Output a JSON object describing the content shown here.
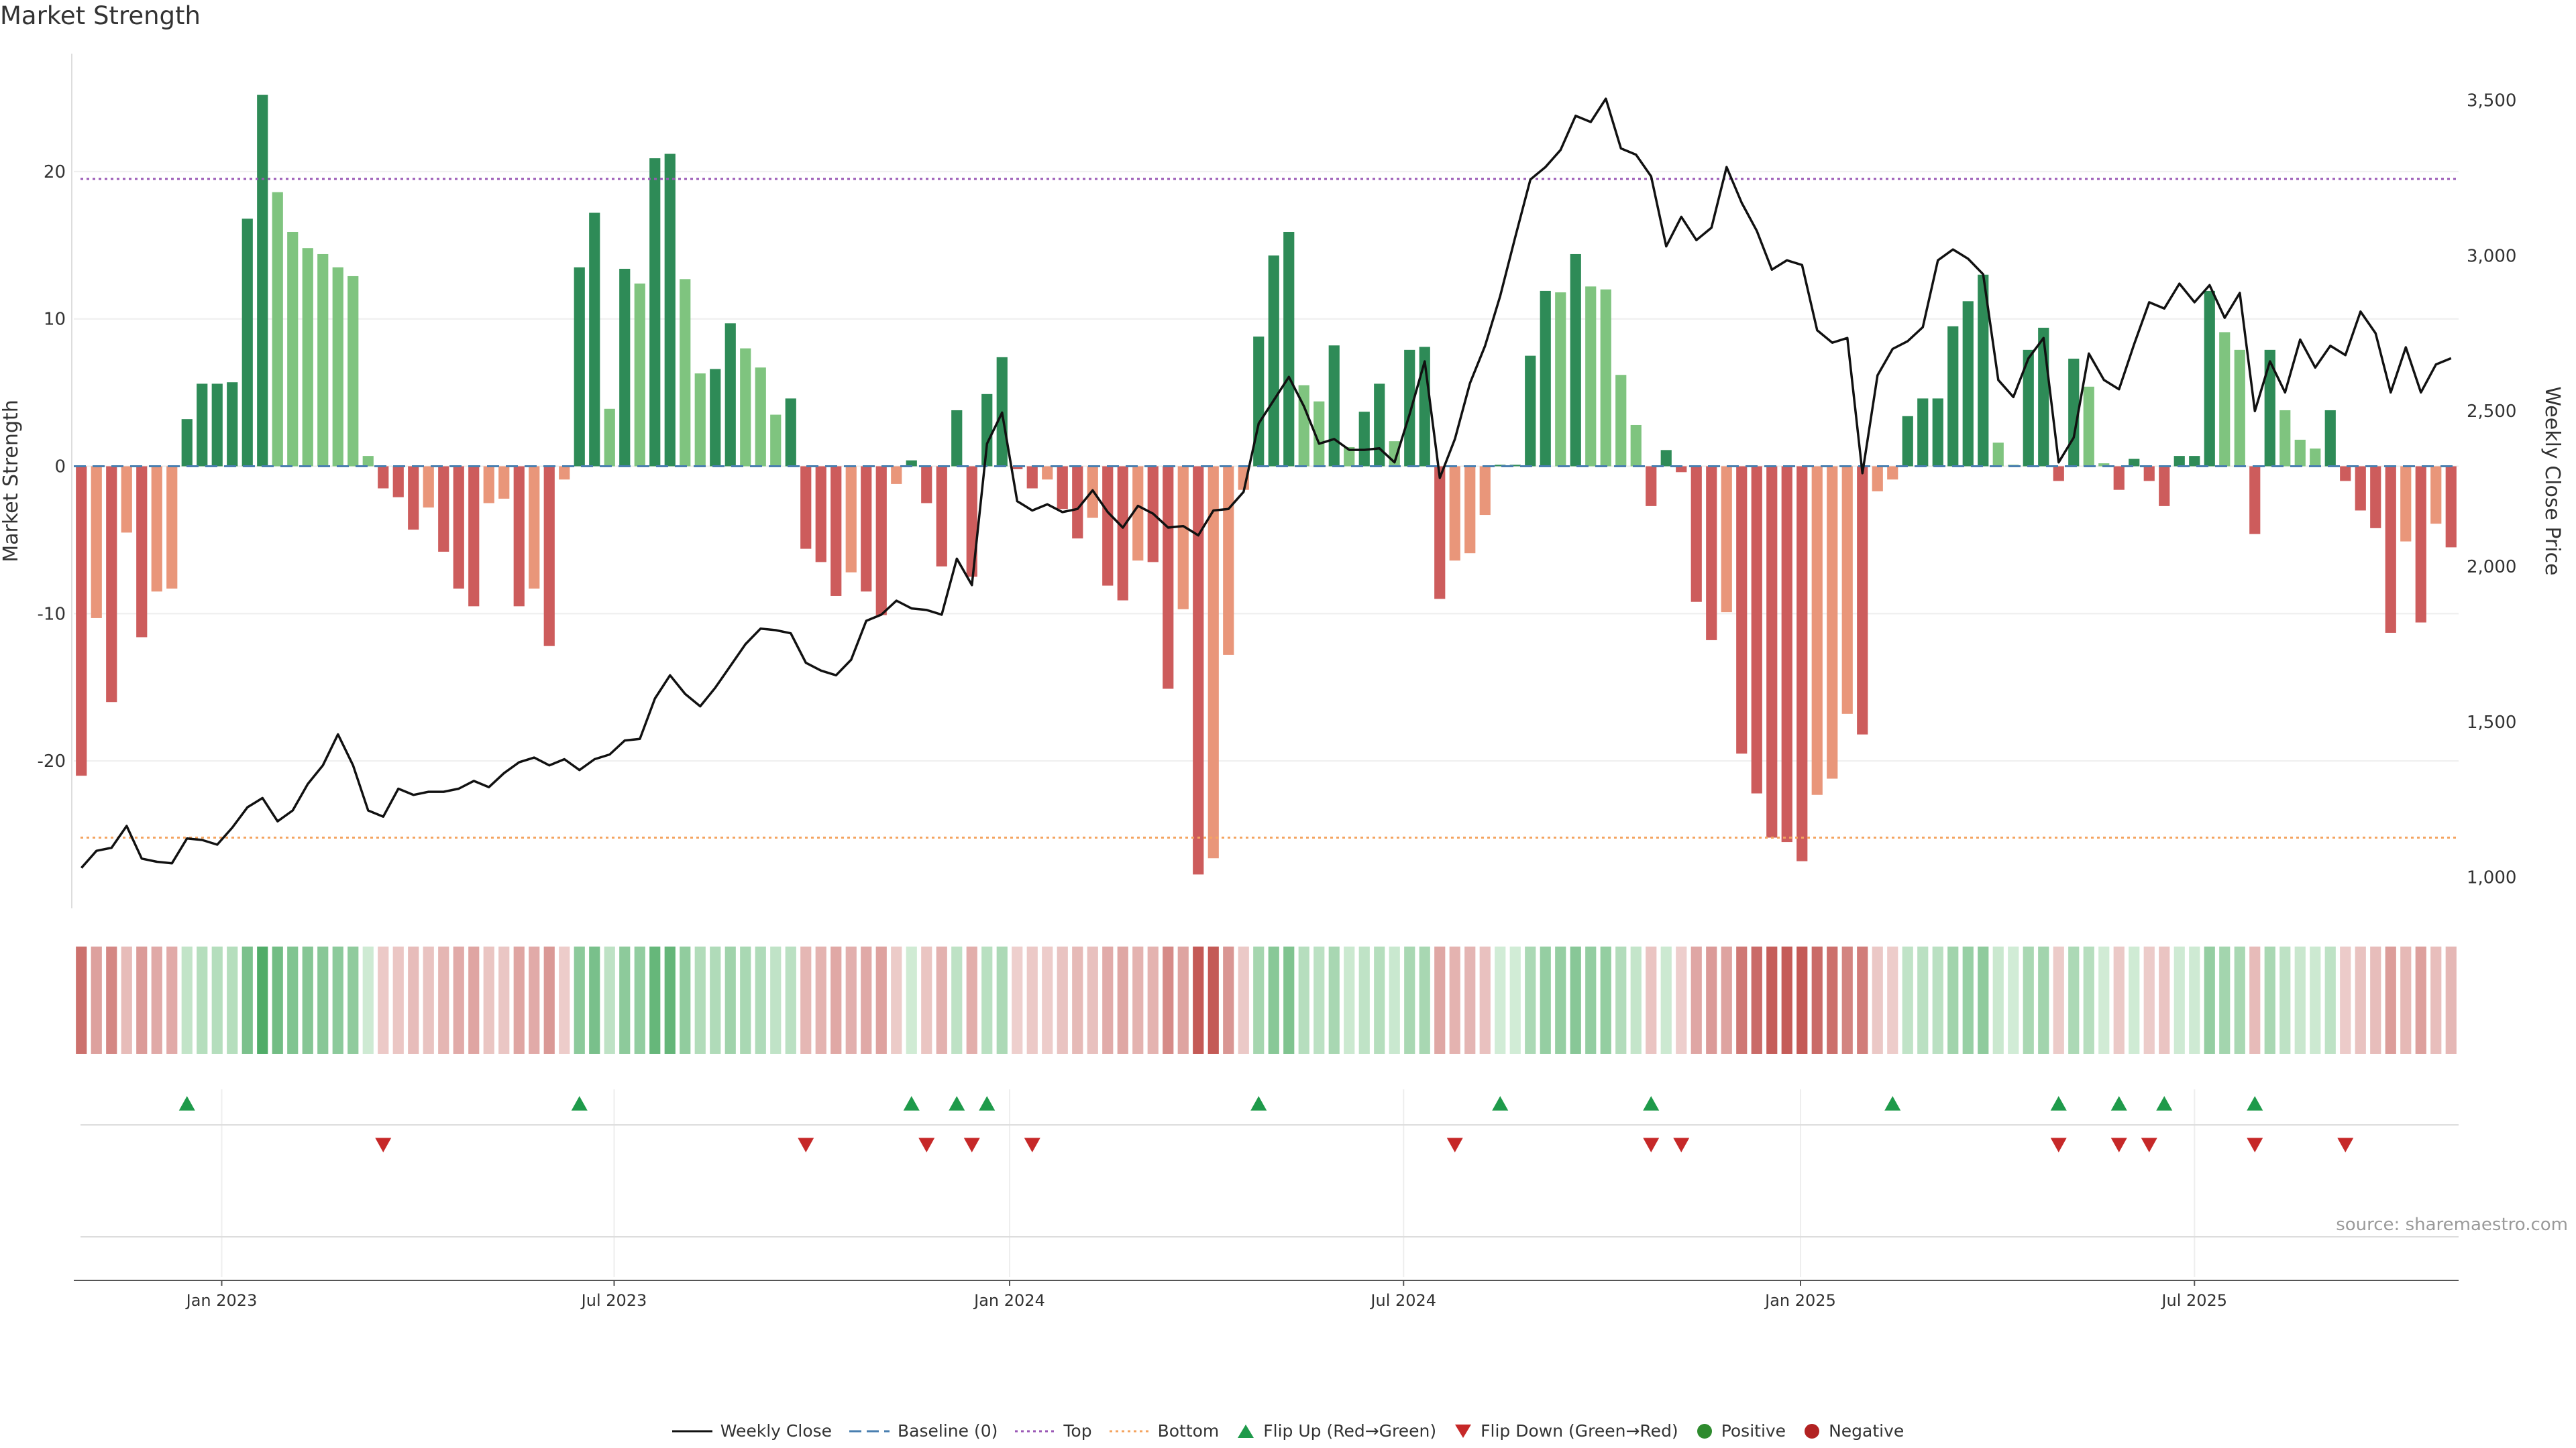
{
  "title": "Market Strength",
  "source": "source: sharemaestro.com",
  "colors": {
    "pos_dark": "#2e8b57",
    "pos_light": "#7fc47f",
    "neg_dark": "#cd5c5c",
    "neg_light": "#e9967a",
    "line": "#111111",
    "baseline": "#4a7fb0",
    "top": "#9b59b6",
    "bottom": "#f4a460",
    "flip_up": "#1e9a4a",
    "flip_down": "#c62828",
    "positive": "#2e8b2e",
    "negative": "#b22222"
  },
  "chart_data": {
    "type": "bar",
    "title": "Market Strength",
    "ylabel": "Market Strength",
    "y2label": "Weekly Close Price",
    "ylim": [
      -30,
      28
    ],
    "y2lim": [
      900,
      3650
    ],
    "yticks": [
      -20,
      -10,
      0,
      10,
      20
    ],
    "y2ticks": [
      1000,
      1500,
      2000,
      2500,
      3000,
      3500
    ],
    "y2ticklabels": [
      "1,000",
      "1,500",
      "2,000",
      "2,500",
      "3,000",
      "3,500"
    ],
    "xticks": [
      {
        "label": "Jan 2023",
        "index": 9.3
      },
      {
        "label": "Jul 2023",
        "index": 35.3
      },
      {
        "label": "Jan 2024",
        "index": 61.5
      },
      {
        "label": "Jul 2024",
        "index": 87.6
      },
      {
        "label": "Jan 2025",
        "index": 113.9
      },
      {
        "label": "Jul 2025",
        "index": 140.0
      }
    ],
    "top_line": 19.5,
    "bottom_line": -25.2,
    "baseline": 0,
    "strength": [
      -21,
      -10.3,
      -16,
      -4.5,
      -11.6,
      -8.5,
      -8.3,
      3.2,
      5.6,
      5.6,
      5.7,
      16.8,
      25.2,
      18.6,
      15.9,
      14.8,
      14.4,
      13.5,
      12.9,
      0.7,
      -1.5,
      -2.1,
      -4.3,
      -2.8,
      -5.8,
      -8.3,
      -9.5,
      -2.5,
      -2.2,
      -9.5,
      -8.3,
      -12.2,
      -0.9,
      13.5,
      17.2,
      3.9,
      13.4,
      12.4,
      20.9,
      21.2,
      12.7,
      6.3,
      6.6,
      9.7,
      8,
      6.7,
      3.5,
      4.6,
      -5.6,
      -6.5,
      -8.8,
      -7.2,
      -8.5,
      -10.1,
      -1.2,
      0.4,
      -2.5,
      -6.8,
      3.8,
      -7.5,
      4.9,
      7.4,
      -0.2,
      -1.5,
      -0.9,
      -2.9,
      -4.9,
      -3.5,
      -8.1,
      -9.1,
      -6.4,
      -6.5,
      -15.1,
      -9.7,
      -27.7,
      -26.6,
      -12.8,
      -1.6,
      8.8,
      14.3,
      15.9,
      5.5,
      4.4,
      8.2,
      1.3,
      3.7,
      5.6,
      1.7,
      7.9,
      8.1,
      -9,
      -6.4,
      -5.9,
      -3.3,
      0.1,
      0.1,
      7.5,
      11.9,
      11.8,
      14.4,
      12.2,
      12,
      6.2,
      2.8,
      -2.7,
      1.1,
      -0.4,
      -9.2,
      -11.8,
      -9.9,
      -19.5,
      -22.2,
      -25.2,
      -25.5,
      -26.8,
      -22.3,
      -21.2,
      -16.8,
      -18.2,
      -1.7,
      -0.9,
      3.4,
      4.6,
      4.6,
      9.5,
      11.2,
      13,
      1.6,
      0.1,
      7.9,
      9.4,
      -1,
      7.3,
      5.4,
      0.2,
      -1.6,
      0.5,
      -1,
      -2.7,
      0.7,
      0.7,
      11.9,
      9.1,
      7.9,
      -4.6,
      7.9,
      3.8,
      1.8,
      1.2,
      3.8,
      -1,
      -3,
      -4.2,
      -11.3,
      -5.1,
      -10.6,
      -3.9,
      -5.5
    ],
    "price": [
      1030,
      1085,
      1095,
      1165,
      1060,
      1050,
      1045,
      1125,
      1120,
      1105,
      1160,
      1225,
      1255,
      1180,
      1215,
      1300,
      1360,
      1460,
      1360,
      1215,
      1195,
      1285,
      1265,
      1275,
      1275,
      1285,
      1310,
      1290,
      1335,
      1370,
      1385,
      1360,
      1380,
      1345,
      1380,
      1395,
      1440,
      1445,
      1575,
      1650,
      1590,
      1550,
      1610,
      1680,
      1750,
      1800,
      1795,
      1785,
      1690,
      1665,
      1650,
      1700,
      1825,
      1845,
      1890,
      1865,
      1860,
      1845,
      2025,
      1940,
      2395,
      2495,
      2210,
      2180,
      2200,
      2175,
      2185,
      2245,
      2175,
      2125,
      2195,
      2170,
      2125,
      2130,
      2100,
      2180,
      2185,
      2240,
      2460,
      2535,
      2610,
      2515,
      2395,
      2410,
      2375,
      2375,
      2380,
      2335,
      2490,
      2660,
      2285,
      2410,
      2590,
      2710,
      2870,
      3060,
      3245,
      3285,
      3340,
      3450,
      3430,
      3505,
      3345,
      3325,
      3255,
      3030,
      3125,
      3050,
      3090,
      3285,
      3170,
      3080,
      2955,
      2985,
      2970,
      2760,
      2720,
      2735,
      2300,
      2615,
      2700,
      2725,
      2770,
      2985,
      3020,
      2990,
      2940,
      2600,
      2545,
      2670,
      2735,
      2335,
      2415,
      2685,
      2600,
      2570,
      2715,
      2850,
      2830,
      2910,
      2850,
      2905,
      2800,
      2880,
      2500,
      2660,
      2560,
      2730,
      2640,
      2710,
      2680,
      2820,
      2750,
      2560,
      2705,
      2560,
      2650,
      2670
    ],
    "heat_strip": [
      -21,
      -10.3,
      -16,
      -4.5,
      -11.6,
      -8.5,
      -8.3,
      3.2,
      5.6,
      5.6,
      5.7,
      16.8,
      25.2,
      18.6,
      15.9,
      14.8,
      14.4,
      13.5,
      12.9,
      0.7,
      -1.5,
      -2.1,
      -4.3,
      -2.8,
      -5.8,
      -8.3,
      -9.5,
      -2.5,
      -2.2,
      -9.5,
      -8.3,
      -12.2,
      -0.9,
      13.5,
      17.2,
      3.9,
      13.4,
      12.4,
      20.9,
      21.2,
      12.7,
      6.3,
      6.6,
      9.7,
      8,
      6.7,
      3.5,
      4.6,
      -5.6,
      -6.5,
      -8.8,
      -7.2,
      -8.5,
      -10.1,
      -1.2,
      0.4,
      -2.5,
      -6.8,
      3.8,
      -7.5,
      4.9,
      7.4,
      -0.2,
      -1.5,
      -0.9,
      -2.9,
      -4.9,
      -3.5,
      -8.1,
      -9.1,
      -6.4,
      -6.5,
      -15.1,
      -9.7,
      -27.7,
      -26.6,
      -12.8,
      -1.6,
      8.8,
      14.3,
      15.9,
      5.5,
      4.4,
      8.2,
      1.3,
      3.7,
      5.6,
      1.7,
      7.9,
      8.1,
      -9,
      -6.4,
      -5.9,
      -3.3,
      0.1,
      0.1,
      7.5,
      11.9,
      11.8,
      14.4,
      12.2,
      12,
      6.2,
      2.8,
      -2.7,
      1.1,
      -0.4,
      -9.2,
      -11.8,
      -9.9,
      -19.5,
      -22.2,
      -25.2,
      -25.5,
      -26.8,
      -22.3,
      -21.2,
      -16.8,
      -18.2,
      -1.7,
      -0.9,
      3.4,
      4.6,
      4.6,
      9.5,
      11.2,
      13,
      1.6,
      0.1,
      7.9,
      9.4,
      -1,
      7.3,
      5.4,
      0.2,
      -1.6,
      0.5,
      -1,
      -2.7,
      0.7,
      0.7,
      11.9,
      9.1,
      7.9,
      -4.6,
      7.9,
      3.8,
      1.8,
      1.2,
      3.8,
      -1,
      -3,
      -4.2,
      -11.3,
      -5.1,
      -10.6,
      -3.9,
      -5.5
    ],
    "flip_up_index": [
      7,
      33,
      55,
      58,
      60,
      78,
      94,
      104,
      120,
      131,
      135,
      138,
      144
    ],
    "flip_down_index": [
      20,
      48,
      56,
      59,
      63,
      91,
      104,
      106,
      131,
      135,
      137,
      144,
      150
    ],
    "legend": [
      "Weekly Close",
      "Baseline (0)",
      "Top",
      "Bottom",
      "Flip Up (Red→Green)",
      "Flip Down (Green→Red)",
      "Positive",
      "Negative"
    ]
  }
}
